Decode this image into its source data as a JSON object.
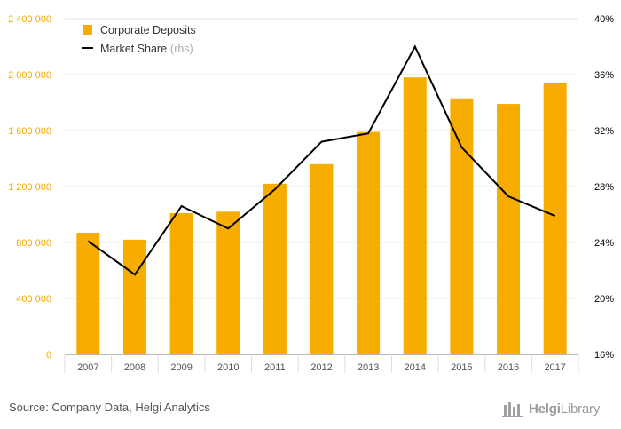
{
  "chart_data": {
    "type": "bar+line",
    "categories": [
      "2007",
      "2008",
      "2009",
      "2010",
      "2011",
      "2012",
      "2013",
      "2014",
      "2015",
      "2016",
      "2017"
    ],
    "series": [
      {
        "name": "Corporate Deposits",
        "type": "bar",
        "axis": "left",
        "color": "#f7ac00",
        "values": [
          870000,
          820000,
          1010000,
          1020000,
          1220000,
          1360000,
          1590000,
          1980000,
          1830000,
          1790000,
          1940000
        ]
      },
      {
        "name": "Market Share",
        "name_suffix": "(rhs)",
        "type": "line",
        "axis": "right",
        "color": "#000000",
        "values": [
          24.1,
          21.7,
          26.6,
          25.0,
          27.8,
          31.2,
          31.8,
          38.0,
          30.8,
          27.3,
          25.9
        ]
      }
    ],
    "y_left": {
      "ylim": [
        0,
        2400000
      ],
      "ticks": [
        0,
        400000,
        800000,
        1200000,
        1600000,
        2000000,
        2400000
      ],
      "tick_labels": [
        "0",
        "400 000",
        "800 000",
        "1 200 000",
        "1 600 000",
        "2 000 000",
        "2 400 000"
      ],
      "color": "#f7ac00"
    },
    "y_right": {
      "ylim": [
        16,
        40
      ],
      "ticks": [
        16,
        20,
        24,
        28,
        32,
        36,
        40
      ],
      "tick_labels": [
        "16%",
        "20%",
        "24%",
        "28%",
        "32%",
        "36%",
        "40%"
      ],
      "color": "#000000"
    },
    "grid": true,
    "legend": "top-left"
  },
  "footer": {
    "source": "Source: Company Data, Helgi Analytics",
    "logo_bold": "Helgi",
    "logo_text": "Library"
  },
  "colors": {
    "bar": "#f7ac00",
    "line": "#000000",
    "grid": "#e6e6e6",
    "footer_text": "#555555"
  },
  "icons": {
    "logo": "helgi-library-logo-icon"
  }
}
